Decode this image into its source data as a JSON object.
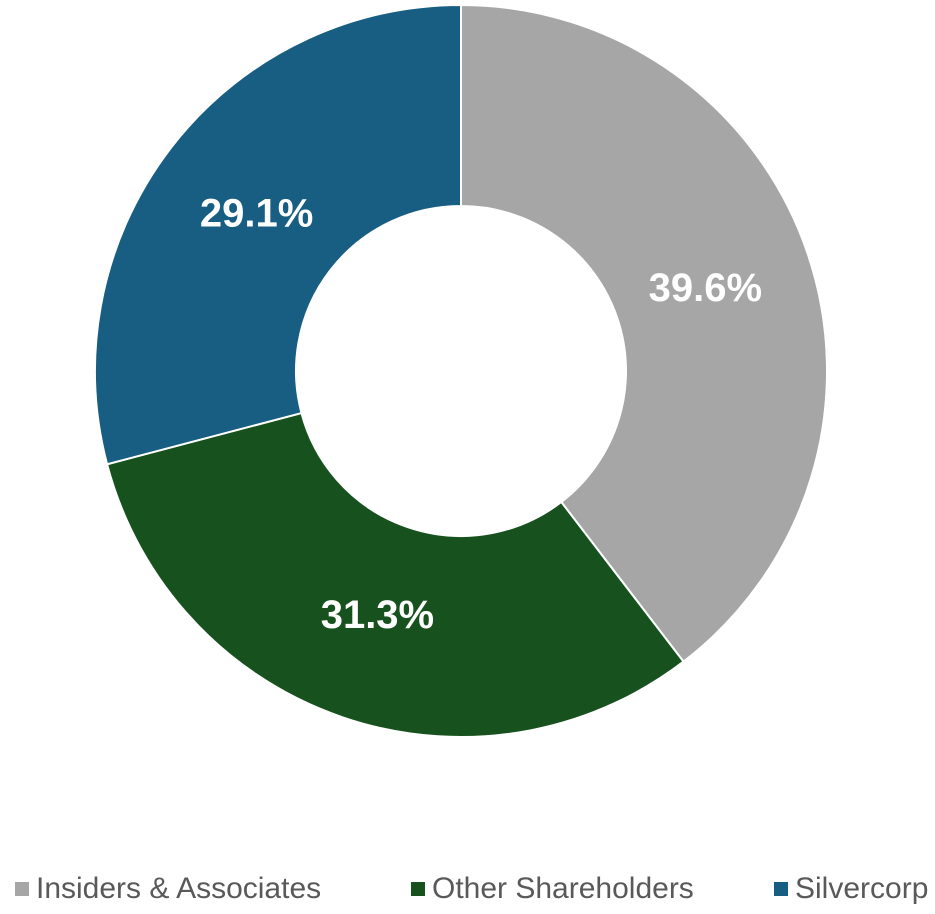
{
  "chart_data": {
    "type": "pie",
    "categories": [
      "Insiders & Associates",
      "Other Shareholders",
      "Silvercorp"
    ],
    "values": [
      39.6,
      31.3,
      29.1
    ],
    "labels": [
      "39.6%",
      "31.3%",
      "29.1%"
    ],
    "unit": "%",
    "colors": [
      "#a6a6a6",
      "#17521e",
      "#175e82"
    ],
    "donut": true,
    "start_angle": "12 o'clock",
    "direction": "clockwise",
    "legend_position": "bottom"
  }
}
